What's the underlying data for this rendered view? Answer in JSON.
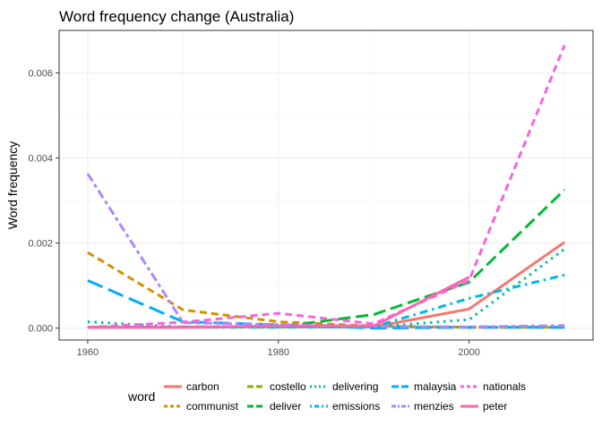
{
  "chart_data": {
    "type": "line",
    "title": "Word frequency change (Australia)",
    "xlabel": "",
    "ylabel": "Word frequency",
    "xlim": [
      1957,
      2013
    ],
    "ylim": [
      -0.00028,
      0.007
    ],
    "x_ticks": [
      1960,
      1980,
      2000
    ],
    "x_tick_labels": [
      "1960",
      "1980",
      "2000"
    ],
    "y_ticks": [
      0.0,
      0.002,
      0.004,
      0.006
    ],
    "y_tick_labels": [
      "0.000",
      "0.002",
      "0.004",
      "0.006"
    ],
    "grid": true,
    "legend": {
      "title": "word",
      "position": "bottom"
    },
    "x": [
      1960,
      1970,
      1980,
      1990,
      2000,
      2010
    ],
    "series": [
      {
        "name": "carbon",
        "color": "#F8766D",
        "dash": "solid",
        "values": [
          2e-05,
          2e-05,
          3e-05,
          3e-05,
          0.00045,
          0.00202
        ]
      },
      {
        "name": "communist",
        "color": "#D39200",
        "dash": "dashed",
        "values": [
          0.00178,
          0.00043,
          0.00015,
          5e-05,
          2e-05,
          2e-05
        ]
      },
      {
        "name": "costello",
        "color": "#93AA00",
        "dash": "longdash",
        "values": [
          2e-05,
          2e-05,
          3e-05,
          3e-05,
          2e-05,
          2e-05
        ]
      },
      {
        "name": "deliver",
        "color": "#00BA38",
        "dash": "longdash",
        "values": [
          2e-05,
          3e-05,
          3e-05,
          0.00032,
          0.00108,
          0.00325
        ]
      },
      {
        "name": "delivering",
        "color": "#00C19F",
        "dash": "dotted",
        "values": [
          0.00015,
          2e-05,
          3e-05,
          3e-05,
          0.0002,
          0.00186
        ]
      },
      {
        "name": "emissions",
        "color": "#00B9E3",
        "dash": "dotdash",
        "values": [
          2e-05,
          2e-05,
          2e-05,
          3e-05,
          0.0007,
          0.00125
        ]
      },
      {
        "name": "malaysia",
        "color": "#00ADFA",
        "dash": "longdash2",
        "values": [
          0.00112,
          0.00015,
          8e-05,
          0.0,
          2e-05,
          2e-05
        ]
      },
      {
        "name": "menzies",
        "color": "#AE87FF",
        "dash": "twodash",
        "values": [
          0.00363,
          0.00013,
          8e-05,
          4e-05,
          3e-05,
          6e-05
        ]
      },
      {
        "name": "nationals",
        "color": "#F564E3",
        "dash": "dashed",
        "values": [
          2e-05,
          0.00014,
          0.00035,
          0.0001,
          0.00112,
          0.00665
        ]
      },
      {
        "name": "peter",
        "color": "#FF64B0",
        "dash": "solid",
        "values": [
          2e-05,
          2e-05,
          5e-05,
          5e-05,
          0.0012,
          null
        ]
      }
    ]
  }
}
